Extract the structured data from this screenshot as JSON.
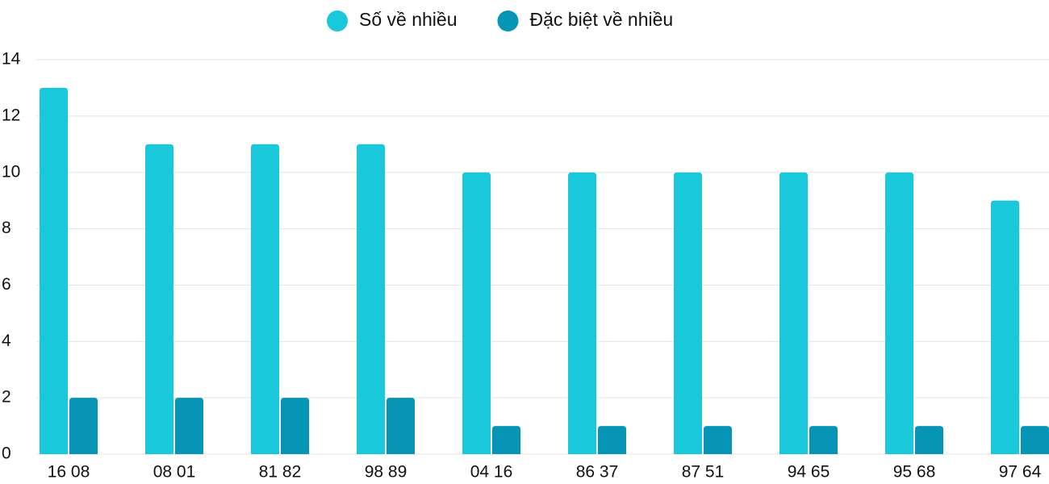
{
  "chart_data": {
    "type": "bar",
    "categories": [
      "16 08",
      "08 01",
      "81 82",
      "98 89",
      "04 16",
      "86 37",
      "87 51",
      "94 65",
      "95 68",
      "97 64"
    ],
    "series": [
      {
        "name": "Số về nhiều",
        "color": "#1ac8db",
        "values": [
          13,
          11,
          11,
          11,
          10,
          10,
          10,
          10,
          10,
          9
        ]
      },
      {
        "name": "Đặc biệt về nhiều",
        "color": "#0795b7",
        "values": [
          2,
          2,
          2,
          2,
          1,
          1,
          1,
          1,
          1,
          1
        ]
      }
    ],
    "ylim": [
      0,
      14
    ],
    "yticks": [
      0,
      2,
      4,
      6,
      8,
      10,
      12,
      14
    ],
    "grid": true,
    "legend": "top"
  }
}
